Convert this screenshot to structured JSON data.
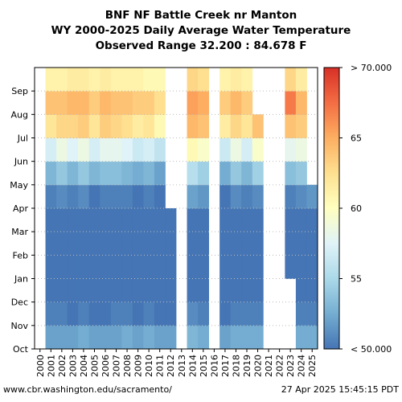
{
  "chart_data": {
    "type": "heatmap",
    "title": "BNF NF Battle Creek nr Manton",
    "subtitle": "WY 2000-2025 Daily Average Water Temperature",
    "range_text": "Observed Range 32.200 : 84.678 F",
    "x_labels": [
      "2000",
      "2001",
      "2002",
      "2003",
      "2004",
      "2005",
      "2006",
      "2007",
      "2008",
      "2009",
      "2010",
      "2011",
      "2012",
      "2013",
      "2014",
      "2015",
      "2016",
      "2017",
      "2018",
      "2019",
      "2020",
      "2021",
      "2022",
      "2023",
      "2024",
      "2025"
    ],
    "y_labels": [
      "Oct",
      "Nov",
      "Dec",
      "Jan",
      "Feb",
      "Mar",
      "Apr",
      "May",
      "Jun",
      "Jul",
      "Aug",
      "Sep"
    ],
    "colorbar_labels": [
      "< 50.000",
      "55",
      "60",
      "65",
      "> 70.000"
    ],
    "color_range": [
      50,
      70
    ],
    "colormap": [
      "#4575b4",
      "#74add1",
      "#abd9e9",
      "#e0f3f8",
      "#ffffbf",
      "#fee090",
      "#fdae61",
      "#f46d43",
      "#d73027"
    ],
    "grid": true,
    "monthly_means_F": [
      [
        null,
        null,
        null,
        null,
        null,
        null,
        null,
        null,
        null,
        null,
        null,
        null
      ],
      [
        52.0,
        50.5,
        49.0,
        48.0,
        48.5,
        49.5,
        50.5,
        53.0,
        57.0,
        62.0,
        64.0,
        61.0
      ],
      [
        52.0,
        50.5,
        48.5,
        48.0,
        48.5,
        49.5,
        51.0,
        54.0,
        58.5,
        63.0,
        64.0,
        61.0
      ],
      [
        52.0,
        50.0,
        48.5,
        47.5,
        48.0,
        49.0,
        50.5,
        53.0,
        57.5,
        63.0,
        64.5,
        61.5
      ],
      [
        52.5,
        50.5,
        49.0,
        48.0,
        48.5,
        49.5,
        51.0,
        54.0,
        58.5,
        63.5,
        64.5,
        61.5
      ],
      [
        52.0,
        50.0,
        48.5,
        48.0,
        48.5,
        49.0,
        50.0,
        53.0,
        57.0,
        62.0,
        63.5,
        61.0
      ],
      [
        52.0,
        50.0,
        48.5,
        48.0,
        48.5,
        49.0,
        50.5,
        53.5,
        58.0,
        63.5,
        64.5,
        61.5
      ],
      [
        52.0,
        50.5,
        49.0,
        48.0,
        48.5,
        49.5,
        50.5,
        53.5,
        58.0,
        63.0,
        64.0,
        61.0
      ],
      [
        52.5,
        50.5,
        49.0,
        48.0,
        48.5,
        49.5,
        50.5,
        53.0,
        57.5,
        62.5,
        64.0,
        61.0
      ],
      [
        52.0,
        50.0,
        48.5,
        48.0,
        48.5,
        49.0,
        50.0,
        52.5,
        56.5,
        61.5,
        63.5,
        61.0
      ],
      [
        52.5,
        50.5,
        49.0,
        48.0,
        48.5,
        49.5,
        50.5,
        53.0,
        57.0,
        62.0,
        63.5,
        60.5
      ],
      [
        52.0,
        50.0,
        48.5,
        48.0,
        48.5,
        49.0,
        49.5,
        52.0,
        56.0,
        60.5,
        62.5,
        60.5
      ],
      [
        52.0,
        50.0,
        48.5,
        48.0,
        48.5,
        49.0,
        null,
        null,
        null,
        null,
        null,
        null
      ],
      [
        null,
        null,
        null,
        null,
        null,
        null,
        null,
        null,
        null,
        null,
        null,
        null
      ],
      [
        53.0,
        51.0,
        49.5,
        48.5,
        49.0,
        50.0,
        52.0,
        55.5,
        60.5,
        64.5,
        65.5,
        63.0
      ],
      [
        52.5,
        50.5,
        49.0,
        48.5,
        49.0,
        50.0,
        51.5,
        54.5,
        59.5,
        64.0,
        65.0,
        62.5
      ],
      [
        null,
        null,
        null,
        null,
        null,
        null,
        null,
        null,
        null,
        null,
        null,
        null
      ],
      [
        52.0,
        50.0,
        48.5,
        48.0,
        48.5,
        49.0,
        50.0,
        52.5,
        56.5,
        61.5,
        63.5,
        61.0
      ],
      [
        52.5,
        50.5,
        49.0,
        48.5,
        49.0,
        49.5,
        51.0,
        54.0,
        58.5,
        63.0,
        64.5,
        61.5
      ],
      [
        52.5,
        50.5,
        49.0,
        48.0,
        48.5,
        49.5,
        50.5,
        53.0,
        57.0,
        62.0,
        63.5,
        61.0
      ],
      [
        52.5,
        50.5,
        49.0,
        48.5,
        49.0,
        49.5,
        51.0,
        54.5,
        59.5,
        64.0,
        null,
        null
      ],
      [
        null,
        null,
        null,
        null,
        null,
        null,
        null,
        null,
        null,
        null,
        null,
        null
      ],
      [
        null,
        null,
        null,
        null,
        null,
        null,
        null,
        null,
        null,
        null,
        null,
        null
      ],
      [
        null,
        null,
        null,
        48.0,
        48.5,
        49.5,
        50.5,
        53.5,
        58.0,
        64.0,
        67.0,
        63.0
      ],
      [
        52.5,
        50.5,
        49.0,
        48.0,
        48.5,
        49.5,
        51.0,
        54.0,
        58.5,
        63.5,
        64.5,
        61.5
      ],
      [
        52.5,
        50.5,
        49.0,
        48.0,
        48.5,
        49.5,
        51.5,
        null,
        null,
        null,
        null,
        null
      ]
    ]
  },
  "footer": {
    "url": "www.cbr.washington.edu/sacramento/",
    "timestamp": "27 Apr 2025 15:45:15 PDT"
  }
}
